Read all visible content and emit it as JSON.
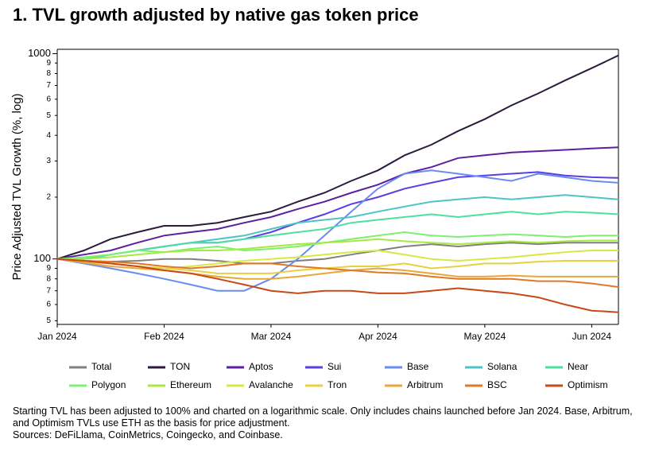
{
  "chart_data": {
    "type": "line",
    "title": "1. TVL growth adjusted by native gas token price",
    "ylabel": "Price Adjusted TVL Growth (%, log)",
    "log_y": true,
    "categories": [
      "Jan 2024",
      null,
      null,
      null,
      "Feb 2024",
      null,
      null,
      null,
      "Mar 2024",
      null,
      null,
      null,
      "Apr 2024",
      null,
      null,
      null,
      "May 2024",
      null,
      null,
      null,
      "Jun 2024",
      null
    ],
    "ylim": [
      48,
      1050
    ],
    "yticks": [
      {
        "value": 50,
        "label": "5"
      },
      {
        "value": 60,
        "label": "6"
      },
      {
        "value": 70,
        "label": "7"
      },
      {
        "value": 80,
        "label": "8"
      },
      {
        "value": 90,
        "label": "9"
      },
      100,
      {
        "value": 200,
        "label": "2"
      },
      {
        "value": 300,
        "label": "3"
      },
      {
        "value": 400,
        "label": "4"
      },
      {
        "value": 500,
        "label": "5"
      },
      {
        "value": 600,
        "label": "6"
      },
      {
        "value": 700,
        "label": "7"
      },
      {
        "value": 800,
        "label": "8"
      },
      {
        "value": 900,
        "label": "9"
      },
      1000
    ],
    "series": [
      {
        "name": "Total",
        "color": "#808080",
        "values": [
          100,
          98,
          97,
          98,
          100,
          100,
          98,
          95,
          95,
          98,
          100,
          105,
          110,
          115,
          118,
          115,
          118,
          120,
          118,
          120,
          120,
          120
        ]
      },
      {
        "name": "TON",
        "color": "#2d1b3d",
        "values": [
          100,
          110,
          125,
          135,
          145,
          145,
          150,
          160,
          170,
          190,
          210,
          240,
          270,
          320,
          360,
          420,
          480,
          560,
          640,
          740,
          850,
          980
        ]
      },
      {
        "name": "Aptos",
        "color": "#5b1fa0",
        "values": [
          100,
          105,
          110,
          120,
          130,
          135,
          140,
          150,
          160,
          175,
          190,
          210,
          230,
          260,
          280,
          310,
          320,
          330,
          335,
          340,
          345,
          350
        ]
      },
      {
        "name": "Sui",
        "color": "#5b3fe0",
        "values": [
          100,
          100,
          105,
          110,
          115,
          120,
          120,
          125,
          135,
          150,
          165,
          185,
          200,
          220,
          235,
          250,
          255,
          260,
          265,
          255,
          250,
          248
        ]
      },
      {
        "name": "Base",
        "color": "#6a8cf0",
        "values": [
          100,
          95,
          90,
          85,
          80,
          75,
          70,
          70,
          80,
          100,
          130,
          170,
          220,
          260,
          270,
          260,
          250,
          240,
          260,
          250,
          240,
          235
        ]
      },
      {
        "name": "Solana",
        "color": "#4cc4c4",
        "values": [
          100,
          100,
          105,
          110,
          115,
          120,
          125,
          130,
          140,
          150,
          155,
          160,
          170,
          180,
          190,
          195,
          200,
          195,
          200,
          205,
          200,
          195
        ]
      },
      {
        "name": "Near",
        "color": "#4ce0a0",
        "values": [
          100,
          100,
          105,
          110,
          115,
          120,
          120,
          125,
          130,
          135,
          140,
          150,
          155,
          160,
          165,
          160,
          165,
          170,
          165,
          170,
          168,
          165
        ]
      },
      {
        "name": "Polygon",
        "color": "#7cf070",
        "values": [
          100,
          102,
          105,
          110,
          108,
          112,
          115,
          110,
          112,
          115,
          120,
          125,
          130,
          135,
          130,
          128,
          130,
          132,
          130,
          128,
          130,
          130
        ]
      },
      {
        "name": "Ethereum",
        "color": "#a8e840",
        "values": [
          100,
          100,
          102,
          105,
          108,
          110,
          110,
          112,
          115,
          118,
          120,
          122,
          125,
          122,
          120,
          118,
          120,
          122,
          120,
          122,
          123,
          123
        ]
      },
      {
        "name": "Avalanche",
        "color": "#d8e840",
        "values": [
          100,
          98,
          95,
          92,
          90,
          92,
          95,
          98,
          100,
          102,
          105,
          108,
          110,
          105,
          100,
          98,
          100,
          102,
          105,
          108,
          110,
          110
        ]
      },
      {
        "name": "Tron",
        "color": "#e8d040",
        "values": [
          100,
          97,
          95,
          92,
          90,
          88,
          85,
          85,
          85,
          88,
          90,
          92,
          92,
          95,
          90,
          92,
          95,
          95,
          97,
          98,
          98,
          98
        ]
      },
      {
        "name": "Arbitrum",
        "color": "#e8a838",
        "values": [
          100,
          96,
          92,
          90,
          88,
          85,
          82,
          80,
          80,
          82,
          85,
          88,
          90,
          88,
          85,
          82,
          82,
          83,
          82,
          82,
          82,
          82
        ]
      },
      {
        "name": "BSC",
        "color": "#e07828",
        "values": [
          100,
          98,
          97,
          95,
          92,
          90,
          92,
          95,
          95,
          92,
          90,
          88,
          86,
          85,
          82,
          80,
          80,
          80,
          78,
          78,
          76,
          73
        ]
      },
      {
        "name": "Optimism",
        "color": "#c84818",
        "values": [
          100,
          98,
          95,
          92,
          88,
          85,
          80,
          75,
          70,
          68,
          70,
          70,
          68,
          68,
          70,
          72,
          70,
          68,
          65,
          60,
          56,
          55
        ]
      }
    ],
    "notes": [
      "Starting TVL has been adjusted to 100% and charted on a logarithmic scale. Only includes chains launched before Jan 2024. Base, Arbitrum, and Optimism TVLs use ETH as the basis for price adjustment.",
      "Sources: DeFiLlama, CoinMetrics, Coingecko, and Coinbase."
    ]
  }
}
